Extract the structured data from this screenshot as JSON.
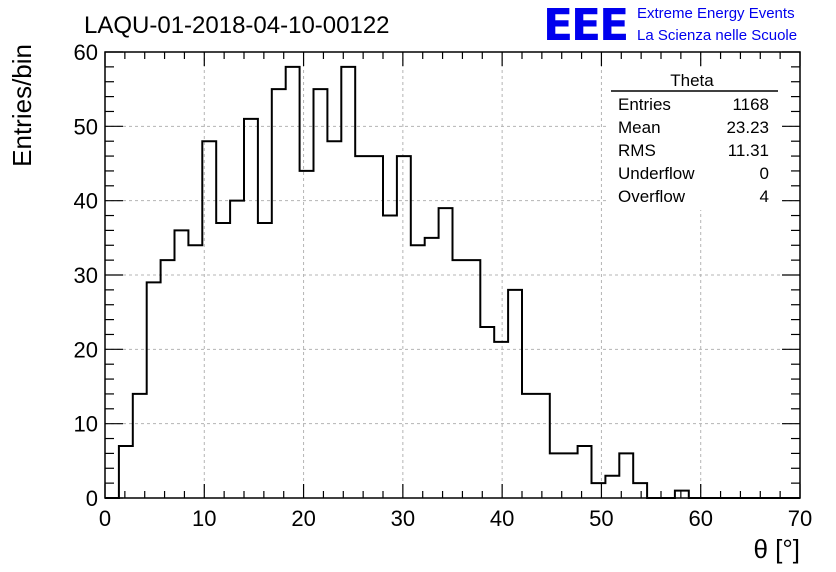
{
  "title": "LAQU-01-2018-04-10-00122",
  "logo": {
    "mark": "EEE",
    "line1": "Extreme Energy Events",
    "line2": "La Scienza nelle Scuole",
    "color": "#0000ee"
  },
  "stats": {
    "name": "Theta",
    "rows": [
      {
        "label": "Entries",
        "value": "1168"
      },
      {
        "label": "Mean",
        "value": "23.23"
      },
      {
        "label": "RMS",
        "value": "11.31"
      },
      {
        "label": "Underflow",
        "value": "0"
      },
      {
        "label": "Overflow",
        "value": "4"
      }
    ]
  },
  "chart_data": {
    "type": "bar",
    "histogram": true,
    "title": "LAQU-01-2018-04-10-00122",
    "xlabel": "θ [°]",
    "ylabel": "Entries/bin",
    "xlim": [
      0,
      70
    ],
    "ylim": [
      0,
      60
    ],
    "xticks": [
      0,
      10,
      20,
      30,
      40,
      50,
      60,
      70
    ],
    "yticks": [
      0,
      10,
      20,
      30,
      40,
      50,
      60
    ],
    "grid": true,
    "bin_width": 1.4,
    "bin_start": 0,
    "series": [
      {
        "values": [
          0,
          7,
          14,
          29,
          32,
          36,
          34,
          48,
          37,
          40,
          51,
          37,
          55,
          58,
          44,
          55,
          48,
          58,
          46,
          46,
          38,
          46,
          34,
          35,
          39,
          32,
          32,
          23,
          21,
          28,
          14,
          14,
          6,
          6,
          7,
          2,
          3,
          6,
          2,
          0,
          0,
          1,
          0,
          0,
          0,
          0,
          0,
          0,
          0,
          0
        ]
      }
    ],
    "line_color": "#000000",
    "grid_color": "#b4b4b4"
  }
}
